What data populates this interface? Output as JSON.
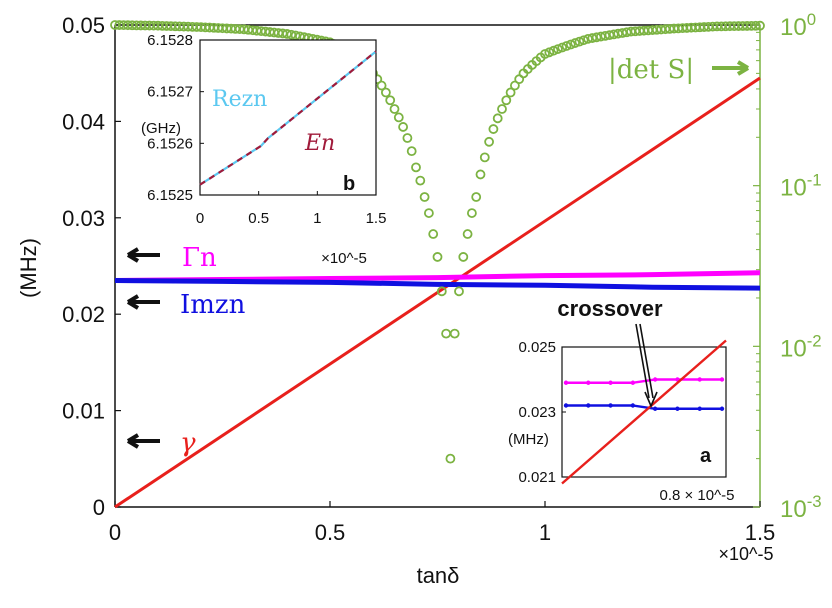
{
  "chart_data": [
    {
      "type": "line",
      "xlabel": "tanδ",
      "x_exponent": "×10^-5",
      "ylabel": "(MHz)",
      "xlim": [
        0,
        1.5
      ],
      "ylim": [
        0,
        0.05
      ],
      "x_ticks": [
        "0",
        "0.5",
        "1",
        "1.5"
      ],
      "y_ticks": [
        "0",
        "0.01",
        "0.02",
        "0.03",
        "0.04",
        "0.05"
      ],
      "y2_scale": "log",
      "y2lim": [
        0.001,
        1
      ],
      "y2_ticks": [
        "10^-3",
        "10^-2",
        "10^-1",
        "10^0"
      ],
      "grid": false,
      "series": [
        {
          "name": "γ",
          "color": "#e8201c",
          "axis": "left",
          "x": [
            0,
            1.5
          ],
          "values": [
            0,
            0.0445
          ]
        },
        {
          "name": "Γn",
          "color": "#ff00ff",
          "axis": "left",
          "x": [
            0,
            0.25,
            0.5,
            0.75,
            1.0,
            1.25,
            1.5
          ],
          "values": [
            0.0235,
            0.0236,
            0.0237,
            0.0238,
            0.024,
            0.0241,
            0.0243
          ]
        },
        {
          "name": "Imzn",
          "color": "#1010e0",
          "axis": "left",
          "x": [
            0,
            0.25,
            0.5,
            0.75,
            1.0,
            1.25,
            1.5
          ],
          "values": [
            0.0235,
            0.0234,
            0.0233,
            0.0231,
            0.023,
            0.0228,
            0.0227
          ]
        },
        {
          "name": "|det S|",
          "color": "#7cb342",
          "axis": "right",
          "x": [
            0,
            0.1,
            0.2,
            0.3,
            0.4,
            0.5,
            0.55,
            0.6,
            0.65,
            0.7,
            0.72,
            0.74,
            0.76,
            0.77,
            0.78,
            0.79,
            0.8,
            0.82,
            0.84,
            0.86,
            0.9,
            0.95,
            1.0,
            1.1,
            1.2,
            1.3,
            1.4,
            1.5
          ],
          "values": [
            1.0,
            0.99,
            0.97,
            0.94,
            0.88,
            0.78,
            0.68,
            0.5,
            0.3,
            0.13,
            0.085,
            0.05,
            0.022,
            0.012,
            0.002,
            0.012,
            0.022,
            0.05,
            0.085,
            0.15,
            0.3,
            0.5,
            0.66,
            0.82,
            0.91,
            0.95,
            0.98,
            0.99
          ]
        }
      ],
      "annotations": {
        "gamma_n_label": "Γn",
        "imz_label": "Imzn",
        "gamma_label": "γ",
        "dets_label": "|det S|"
      }
    },
    {
      "id": "inset-a",
      "type": "line",
      "panel_label": "a",
      "annotation": "crossover",
      "ylabel": "(MHz)",
      "x_tick_label": "0.8 × 10^-5",
      "ylim": [
        0.021,
        0.025
      ],
      "y_ticks": [
        "0.021",
        "0.023",
        "0.025"
      ],
      "series": [
        {
          "name": "Γn",
          "color": "#ff00ff",
          "values": [
            0.0239,
            0.0239,
            0.0239,
            0.0239,
            0.024,
            0.024,
            0.024,
            0.024
          ]
        },
        {
          "name": "Imzn",
          "color": "#1010e0",
          "values": [
            0.0232,
            0.0232,
            0.0232,
            0.0232,
            0.0231,
            0.0231,
            0.0231,
            0.0231
          ]
        },
        {
          "name": "γ",
          "color": "#e8201c",
          "x": [
            0.0,
            1.0
          ],
          "values": [
            0.0208,
            0.0252
          ]
        }
      ]
    },
    {
      "id": "inset-b",
      "type": "line",
      "panel_label": "b",
      "ylabel": "(GHz)",
      "xlim": [
        0,
        1.5
      ],
      "ylim": [
        6.1525,
        6.1528
      ],
      "x_ticks": [
        "0",
        "0.5",
        "1",
        "1.5"
      ],
      "y_ticks": [
        "6.1525",
        "6.1526",
        "6.1527",
        "6.1528"
      ],
      "x_exponent": "×10^-5",
      "series": [
        {
          "name": "Rezn",
          "color": "#5bc8f0",
          "x": [
            0,
            0.52,
            0.58,
            1.5
          ],
          "values": [
            6.15252,
            6.152595,
            6.15261,
            6.152778
          ]
        },
        {
          "name": "En",
          "color": "#a01a3a",
          "x": [
            0,
            0.52,
            0.58,
            1.5
          ],
          "values": [
            6.15252,
            6.152595,
            6.15261,
            6.152778
          ]
        }
      ],
      "legend": {
        "rez": "Rezn",
        "en": "En"
      }
    }
  ]
}
